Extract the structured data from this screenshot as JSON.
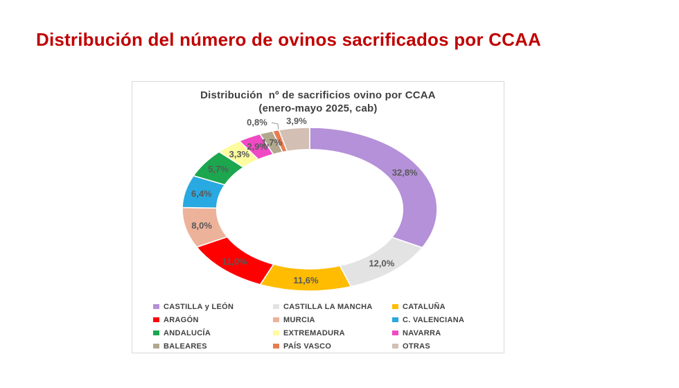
{
  "page": {
    "title": "Distribución del número de ovinos sacrificados por CCAA",
    "title_color": "#C00000",
    "background": "#FFFFFF"
  },
  "chart_data": {
    "type": "pie",
    "variant": "donut",
    "title": "Distribución  nº de sacrificios ovino por CCAA",
    "subtitle": "(enero-mayo 2025, cab)",
    "unit": "%",
    "direction": "clockwise",
    "start_angle_deg": 0,
    "inner_radius_ratio": 0.73,
    "legend_position": "bottom",
    "label_color": "#595959",
    "leader_line_color": "#A6A6A6",
    "segments": [
      {
        "name": "CASTILLA y LEÓN",
        "value": 32.8,
        "label": "32,8%",
        "color": "#B491D9"
      },
      {
        "name": "CASTILLA LA MANCHA",
        "value": 12.0,
        "label": "12,0%",
        "color": "#E3E3E3"
      },
      {
        "name": "CATALUÑA",
        "value": 11.6,
        "label": "11,6%",
        "color": "#FFBC00"
      },
      {
        "name": "ARAGÓN",
        "value": 11.0,
        "label": "11,0%",
        "color": "#FE0000"
      },
      {
        "name": "MURCIA",
        "value": 8.0,
        "label": "8,0%",
        "color": "#EDB29A"
      },
      {
        "name": "C. VALENCIANA",
        "value": 6.4,
        "label": "6,4%",
        "color": "#29A9E1"
      },
      {
        "name": "ANDALUCÍA",
        "value": 5.7,
        "label": "5,7%",
        "color": "#1CA64E"
      },
      {
        "name": "EXTREMADURA",
        "value": 3.3,
        "label": "3,3%",
        "color": "#FDFC9E"
      },
      {
        "name": "NAVARRA",
        "value": 2.9,
        "label": "2,9%",
        "color": "#F049C4"
      },
      {
        "name": "BALEARES",
        "value": 1.7,
        "label": "1,7%",
        "color": "#B2A88F"
      },
      {
        "name": "PAÍS VASCO",
        "value": 0.8,
        "label": "0,8%",
        "color": "#E87C50"
      },
      {
        "name": "OTRAS",
        "value": 3.9,
        "label": "3,9%",
        "color": "#D3BFB3"
      }
    ]
  }
}
